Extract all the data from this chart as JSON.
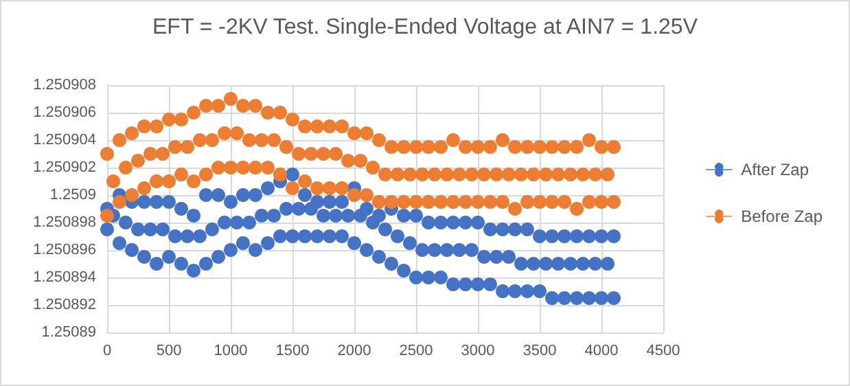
{
  "chart_data": {
    "type": "scatter",
    "title": "EFT = -2KV Test. Single-Ended Voltage at AIN7 = 1.25V",
    "xlim": [
      0,
      4500
    ],
    "xticks": [
      0,
      500,
      1000,
      1500,
      2000,
      2500,
      3000,
      3500,
      4000,
      4500
    ],
    "ylim": [
      1.25089,
      1.250908
    ],
    "yticks": [
      1.25089,
      1.250892,
      1.250894,
      1.250896,
      1.250898,
      1.2509,
      1.250902,
      1.250904,
      1.250906,
      1.250908
    ],
    "grid": true,
    "legend": "right",
    "marker": "circle",
    "series": [
      {
        "name": "After Zap",
        "color": "#4472c4",
        "x": [
          0,
          0,
          50,
          100,
          100,
          150,
          200,
          200,
          250,
          300,
          300,
          350,
          400,
          400,
          450,
          500,
          500,
          550,
          600,
          600,
          650,
          700,
          700,
          750,
          800,
          800,
          850,
          900,
          900,
          950,
          1000,
          1000,
          1050,
          1100,
          1100,
          1150,
          1200,
          1200,
          1250,
          1300,
          1300,
          1350,
          1400,
          1400,
          1450,
          1500,
          1500,
          1550,
          1600,
          1600,
          1650,
          1700,
          1700,
          1750,
          1800,
          1800,
          1850,
          1900,
          1900,
          1950,
          2000,
          2000,
          2050,
          2100,
          2100,
          2150,
          2200,
          2200,
          2250,
          2300,
          2300,
          2350,
          2400,
          2400,
          2450,
          2500,
          2500,
          2550,
          2600,
          2600,
          2650,
          2700,
          2700,
          2750,
          2800,
          2800,
          2850,
          2900,
          2900,
          2950,
          3000,
          3000,
          3050,
          3100,
          3100,
          3150,
          3200,
          3200,
          3250,
          3300,
          3300,
          3350,
          3400,
          3400,
          3450,
          3500,
          3500,
          3550,
          3600,
          3600,
          3650,
          3700,
          3700,
          3750,
          3800,
          3800,
          3850,
          3900,
          3900,
          3950,
          4000,
          4000,
          4050,
          4100,
          4100
        ],
        "values": [
          1.250899,
          1.2508975,
          1.2508985,
          1.2509,
          1.2508965,
          1.250898,
          1.2508995,
          1.250896,
          1.2508975,
          1.2508995,
          1.2508955,
          1.2508975,
          1.2508995,
          1.250895,
          1.2508975,
          1.2508995,
          1.2508955,
          1.250897,
          1.250899,
          1.250895,
          1.250897,
          1.2508985,
          1.2508945,
          1.250897,
          1.2509,
          1.250895,
          1.2508975,
          1.2509,
          1.2508955,
          1.250898,
          1.2508995,
          1.250896,
          1.250898,
          1.2509,
          1.2508965,
          1.250898,
          1.2509,
          1.250896,
          1.2508985,
          1.2509005,
          1.2508965,
          1.2508985,
          1.250901,
          1.250897,
          1.250899,
          1.2509015,
          1.250897,
          1.250899,
          1.2509,
          1.250897,
          1.250899,
          1.2508995,
          1.250897,
          1.2508985,
          1.2508995,
          1.250897,
          1.2508985,
          1.2508995,
          1.250897,
          1.2508985,
          1.2509005,
          1.2508965,
          1.2508985,
          1.250899,
          1.250896,
          1.250898,
          1.2508985,
          1.2508955,
          1.2508975,
          1.250899,
          1.250895,
          1.250897,
          1.2508985,
          1.2508945,
          1.2508965,
          1.2508985,
          1.250894,
          1.250896,
          1.250898,
          1.250894,
          1.250896,
          1.250898,
          1.250894,
          1.250896,
          1.250898,
          1.2508935,
          1.250896,
          1.250898,
          1.2508935,
          1.250896,
          1.250898,
          1.2508935,
          1.2508955,
          1.2508975,
          1.2508935,
          1.2508955,
          1.2508975,
          1.250893,
          1.2508955,
          1.2508975,
          1.250893,
          1.250895,
          1.2508975,
          1.250893,
          1.250895,
          1.250897,
          1.250893,
          1.250895,
          1.250897,
          1.2508925,
          1.250895,
          1.250897,
          1.2508925,
          1.250895,
          1.250897,
          1.2508925,
          1.250895,
          1.250897,
          1.2508925,
          1.250895,
          1.250897,
          1.2508925,
          1.250895,
          1.250897,
          1.2508925
        ]
      },
      {
        "name": "Before Zap",
        "color": "#ed7d31",
        "x": [
          0,
          0,
          50,
          100,
          100,
          150,
          200,
          200,
          250,
          300,
          300,
          350,
          400,
          400,
          450,
          500,
          500,
          550,
          600,
          600,
          650,
          700,
          700,
          750,
          800,
          800,
          850,
          900,
          900,
          950,
          1000,
          1000,
          1050,
          1100,
          1100,
          1150,
          1200,
          1200,
          1250,
          1300,
          1300,
          1350,
          1400,
          1400,
          1450,
          1500,
          1500,
          1550,
          1600,
          1600,
          1650,
          1700,
          1700,
          1750,
          1800,
          1800,
          1850,
          1900,
          1900,
          1950,
          2000,
          2000,
          2050,
          2100,
          2100,
          2150,
          2200,
          2200,
          2250,
          2300,
          2300,
          2350,
          2400,
          2400,
          2450,
          2500,
          2500,
          2550,
          2600,
          2600,
          2650,
          2700,
          2700,
          2750,
          2800,
          2800,
          2850,
          2900,
          2900,
          2950,
          3000,
          3000,
          3050,
          3100,
          3100,
          3150,
          3200,
          3200,
          3250,
          3300,
          3300,
          3350,
          3400,
          3400,
          3450,
          3500,
          3500,
          3550,
          3600,
          3600,
          3650,
          3700,
          3700,
          3750,
          3800,
          3800,
          3850,
          3900,
          3900,
          3950,
          4000,
          4000,
          4050,
          4100,
          4100
        ],
        "values": [
          1.250903,
          1.2508985,
          1.250901,
          1.250904,
          1.2508995,
          1.250902,
          1.2509045,
          1.2509,
          1.2509025,
          1.250905,
          1.2509005,
          1.250903,
          1.250905,
          1.250901,
          1.250903,
          1.2509055,
          1.250901,
          1.2509035,
          1.2509055,
          1.2509015,
          1.2509035,
          1.250906,
          1.250901,
          1.250904,
          1.2509065,
          1.2509015,
          1.250904,
          1.2509065,
          1.250902,
          1.2509045,
          1.250907,
          1.250902,
          1.2509045,
          1.2509065,
          1.250902,
          1.250904,
          1.2509065,
          1.250902,
          1.250904,
          1.250906,
          1.250902,
          1.250904,
          1.250906,
          1.2509015,
          1.2509035,
          1.2509055,
          1.2509005,
          1.250903,
          1.250905,
          1.250901,
          1.250903,
          1.250905,
          1.2509005,
          1.250903,
          1.250905,
          1.2509005,
          1.250903,
          1.250905,
          1.2509005,
          1.2509025,
          1.2509045,
          1.2509,
          1.2509025,
          1.2509045,
          1.2509,
          1.250902,
          1.250904,
          1.2508995,
          1.2509015,
          1.2509035,
          1.2508995,
          1.2509015,
          1.2509035,
          1.2508995,
          1.2509015,
          1.2509035,
          1.2508995,
          1.2509015,
          1.2509035,
          1.2508995,
          1.2509015,
          1.2509035,
          1.2508995,
          1.2509015,
          1.250904,
          1.2508995,
          1.2509015,
          1.2509035,
          1.2508995,
          1.2509015,
          1.2509035,
          1.2508995,
          1.2509015,
          1.2509035,
          1.2508995,
          1.2509015,
          1.250904,
          1.2508995,
          1.2509015,
          1.2509035,
          1.250899,
          1.2509015,
          1.2509035,
          1.2508995,
          1.2509015,
          1.2509035,
          1.2508995,
          1.2509015,
          1.2509035,
          1.2508995,
          1.2509015,
          1.2509035,
          1.2508995,
          1.2509015,
          1.2509035,
          1.250899,
          1.2509015,
          1.250904,
          1.2508995,
          1.2509015,
          1.2509035,
          1.2508995,
          1.2509015,
          1.2509035,
          1.2508995
        ]
      }
    ]
  }
}
